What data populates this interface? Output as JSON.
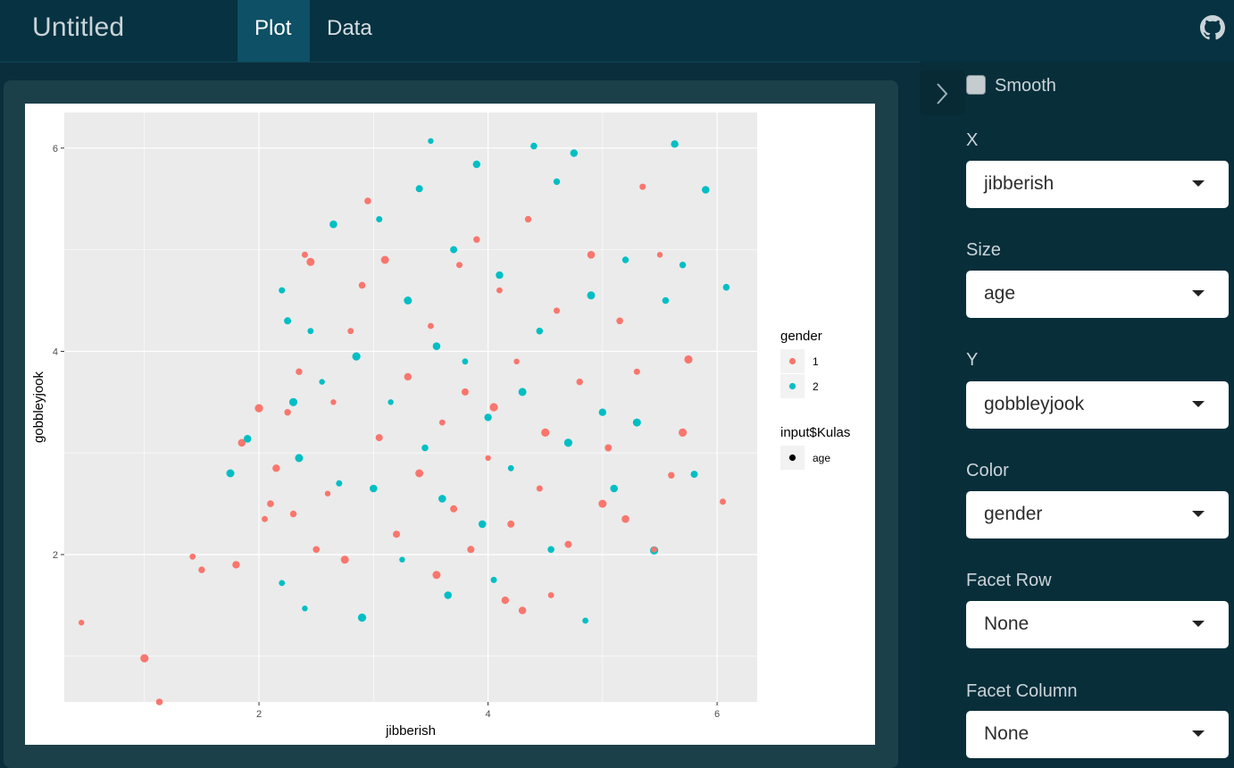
{
  "app": {
    "title": "Untitled"
  },
  "tabs": [
    {
      "label": "Plot",
      "active": true
    },
    {
      "label": "Data",
      "active": false
    }
  ],
  "header_icons": {
    "right": "github-icon"
  },
  "sidebar": {
    "toggle_icon": "chevron-right-icon",
    "smooth": {
      "label": "Smooth",
      "checked": false
    },
    "controls": [
      {
        "label": "X",
        "value": "jibberish"
      },
      {
        "label": "Size",
        "value": "age"
      },
      {
        "label": "Y",
        "value": "gobbleyjook"
      },
      {
        "label": "Color",
        "value": "gender"
      },
      {
        "label": "Facet Row",
        "value": "None"
      },
      {
        "label": "Facet Column",
        "value": "None"
      }
    ]
  },
  "colors": {
    "gender_1": "#F8766D",
    "gender_2": "#00BFC4",
    "panel_bg": "#EBEBEB",
    "accent_tab": "#0e5065"
  },
  "chart_data": {
    "type": "scatter",
    "xlabel": "jibberish",
    "ylabel": "gobbleyjook",
    "xlim": [
      0.3,
      6.35
    ],
    "ylim": [
      0.55,
      6.35
    ],
    "x_ticks": [
      2,
      4,
      6
    ],
    "y_ticks": [
      2,
      4,
      6
    ],
    "grid": true,
    "legend_position": "right",
    "legends": [
      {
        "title": "gender",
        "entries": [
          {
            "label": "1",
            "color": "#F8766D"
          },
          {
            "label": "2",
            "color": "#00BFC4"
          }
        ]
      },
      {
        "title": "input$Kulas",
        "entries": [
          {
            "label": "age",
            "color": "#000000"
          }
        ]
      }
    ],
    "series": [
      {
        "name": "1",
        "color": "#F8766D",
        "points": [
          [
            0.45,
            1.33
          ],
          [
            1.0,
            0.98
          ],
          [
            1.13,
            0.55
          ],
          [
            1.42,
            1.98
          ],
          [
            1.5,
            1.85
          ],
          [
            1.8,
            1.9
          ],
          [
            1.85,
            3.1
          ],
          [
            2.0,
            3.44
          ],
          [
            2.05,
            2.35
          ],
          [
            2.1,
            2.5
          ],
          [
            2.15,
            2.85
          ],
          [
            2.25,
            3.4
          ],
          [
            2.3,
            2.4
          ],
          [
            2.35,
            3.8
          ],
          [
            2.4,
            4.95
          ],
          [
            2.45,
            4.88
          ],
          [
            2.5,
            2.05
          ],
          [
            2.6,
            2.6
          ],
          [
            2.65,
            3.5
          ],
          [
            2.75,
            1.95
          ],
          [
            2.8,
            4.2
          ],
          [
            2.9,
            4.65
          ],
          [
            2.95,
            5.48
          ],
          [
            3.05,
            3.15
          ],
          [
            3.1,
            4.9
          ],
          [
            3.2,
            2.2
          ],
          [
            3.3,
            3.75
          ],
          [
            3.4,
            2.8
          ],
          [
            3.5,
            4.25
          ],
          [
            3.55,
            1.8
          ],
          [
            3.6,
            3.3
          ],
          [
            3.7,
            2.45
          ],
          [
            3.75,
            4.85
          ],
          [
            3.8,
            3.6
          ],
          [
            3.85,
            2.05
          ],
          [
            3.9,
            5.1
          ],
          [
            4.0,
            2.95
          ],
          [
            4.05,
            3.45
          ],
          [
            4.1,
            4.6
          ],
          [
            4.15,
            1.55
          ],
          [
            4.2,
            2.3
          ],
          [
            4.25,
            3.9
          ],
          [
            4.3,
            1.45
          ],
          [
            4.35,
            5.3
          ],
          [
            4.45,
            2.65
          ],
          [
            4.5,
            3.2
          ],
          [
            4.55,
            1.6
          ],
          [
            4.6,
            4.4
          ],
          [
            4.7,
            2.1
          ],
          [
            4.8,
            3.7
          ],
          [
            4.9,
            4.95
          ],
          [
            5.0,
            2.5
          ],
          [
            5.05,
            3.05
          ],
          [
            5.15,
            4.3
          ],
          [
            5.2,
            2.35
          ],
          [
            5.3,
            3.8
          ],
          [
            5.35,
            5.62
          ],
          [
            5.45,
            2.05
          ],
          [
            5.5,
            4.95
          ],
          [
            5.6,
            2.78
          ],
          [
            5.7,
            3.2
          ],
          [
            5.75,
            3.92
          ],
          [
            6.05,
            2.52
          ]
        ]
      },
      {
        "name": "2",
        "color": "#00BFC4",
        "points": [
          [
            1.75,
            2.8
          ],
          [
            1.9,
            3.14
          ],
          [
            2.2,
            1.72
          ],
          [
            2.2,
            4.6
          ],
          [
            2.25,
            4.3
          ],
          [
            2.3,
            3.5
          ],
          [
            2.35,
            2.95
          ],
          [
            2.4,
            1.47
          ],
          [
            2.45,
            4.2
          ],
          [
            2.55,
            3.7
          ],
          [
            2.65,
            5.25
          ],
          [
            2.7,
            2.7
          ],
          [
            2.85,
            3.95
          ],
          [
            2.9,
            1.38
          ],
          [
            3.0,
            2.65
          ],
          [
            3.05,
            5.3
          ],
          [
            3.15,
            3.5
          ],
          [
            3.25,
            1.95
          ],
          [
            3.3,
            4.5
          ],
          [
            3.4,
            5.6
          ],
          [
            3.45,
            3.05
          ],
          [
            3.5,
            6.07
          ],
          [
            3.55,
            4.05
          ],
          [
            3.6,
            2.55
          ],
          [
            3.65,
            1.6
          ],
          [
            3.7,
            5.0
          ],
          [
            3.8,
            3.9
          ],
          [
            3.9,
            5.84
          ],
          [
            3.95,
            2.3
          ],
          [
            4.0,
            3.35
          ],
          [
            4.05,
            1.75
          ],
          [
            4.1,
            4.75
          ],
          [
            4.2,
            2.85
          ],
          [
            4.3,
            3.6
          ],
          [
            4.4,
            6.02
          ],
          [
            4.45,
            4.2
          ],
          [
            4.55,
            2.05
          ],
          [
            4.6,
            5.67
          ],
          [
            4.7,
            3.1
          ],
          [
            4.75,
            5.95
          ],
          [
            4.85,
            1.35
          ],
          [
            4.9,
            4.55
          ],
          [
            5.0,
            3.4
          ],
          [
            5.1,
            2.65
          ],
          [
            5.2,
            4.9
          ],
          [
            5.3,
            3.3
          ],
          [
            5.45,
            2.04
          ],
          [
            5.55,
            4.5
          ],
          [
            5.63,
            6.04
          ],
          [
            5.7,
            4.85
          ],
          [
            5.8,
            2.79
          ],
          [
            5.9,
            5.59
          ],
          [
            6.08,
            4.63
          ]
        ]
      }
    ]
  }
}
